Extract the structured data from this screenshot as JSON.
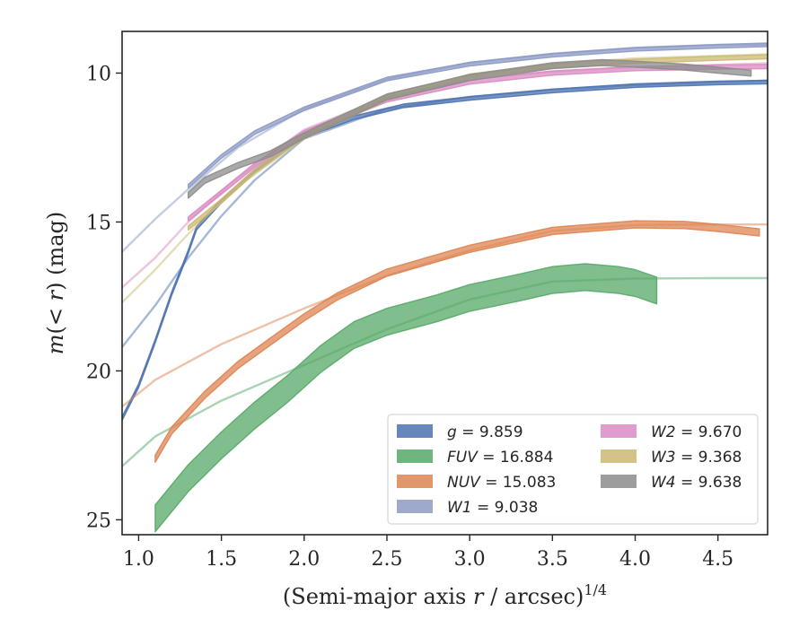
{
  "chart_data": {
    "type": "line",
    "xlabel": "(Semi-major axis r / arcsec)^{1/4}",
    "xlabel_parts": {
      "main": "(Semi-major axis ",
      "var": "r",
      "rest": " / arcsec)",
      "sup": "1/4"
    },
    "ylabel": "m(< r) (mag)",
    "ylabel_parts": {
      "m": "m",
      "open": "(< ",
      "var": "r",
      "close": ") (mag)"
    },
    "xlim": [
      0.9,
      4.8
    ],
    "ylim": [
      25.5,
      8.6
    ],
    "y_inverted": true,
    "xticks": [
      1.0,
      1.5,
      2.0,
      2.5,
      3.0,
      3.5,
      4.0,
      4.5
    ],
    "xtick_labels": [
      "1.0",
      "1.5",
      "2.0",
      "2.5",
      "3.0",
      "3.5",
      "4.0",
      "4.5"
    ],
    "yticks": [
      10,
      15,
      20,
      25
    ],
    "ytick_labels": [
      "10",
      "15",
      "20",
      "25"
    ],
    "grid": false,
    "legend_position": "lower-right",
    "series": [
      {
        "name": "g",
        "legend_var": "g",
        "legend_value": "= 9.859",
        "color": "#4c72b0",
        "band": 0.06,
        "data": [
          [
            0.9,
            21.6
          ],
          [
            1.0,
            20.5
          ],
          [
            1.1,
            19.0
          ],
          [
            1.2,
            17.4
          ],
          [
            1.3,
            16.0
          ],
          [
            1.35,
            15.2
          ],
          [
            1.5,
            14.3
          ],
          [
            1.7,
            13.3
          ],
          [
            2.0,
            12.1
          ],
          [
            2.3,
            11.5
          ],
          [
            2.6,
            11.1
          ],
          [
            3.0,
            10.85
          ],
          [
            3.5,
            10.6
          ],
          [
            4.0,
            10.42
          ],
          [
            4.5,
            10.33
          ],
          [
            4.8,
            10.3
          ]
        ],
        "model": [
          [
            0.9,
            19.2
          ],
          [
            1.1,
            17.8
          ],
          [
            1.3,
            16.2
          ],
          [
            1.5,
            14.8
          ],
          [
            1.7,
            13.6
          ],
          [
            2.0,
            12.2
          ],
          [
            2.5,
            11.2
          ],
          [
            3.0,
            10.8
          ],
          [
            3.5,
            10.55
          ],
          [
            4.0,
            10.4
          ],
          [
            4.5,
            10.3
          ],
          [
            4.8,
            10.25
          ]
        ]
      },
      {
        "name": "FUV",
        "legend_var": "FUV",
        "legend_value": "= 16.884",
        "color": "#55a868",
        "band": 0.45,
        "data": [
          [
            1.1,
            24.95
          ],
          [
            1.3,
            23.6
          ],
          [
            1.5,
            22.5
          ],
          [
            1.7,
            21.5
          ],
          [
            1.9,
            20.6
          ],
          [
            2.1,
            19.6
          ],
          [
            2.3,
            18.8
          ],
          [
            2.5,
            18.35
          ],
          [
            2.8,
            17.9
          ],
          [
            3.0,
            17.55
          ],
          [
            3.3,
            17.2
          ],
          [
            3.5,
            16.95
          ],
          [
            3.7,
            16.85
          ],
          [
            3.9,
            16.95
          ],
          [
            4.0,
            17.05
          ],
          [
            4.13,
            17.3
          ]
        ],
        "model": [
          [
            0.9,
            23.2
          ],
          [
            1.1,
            22.2
          ],
          [
            1.5,
            21.0
          ],
          [
            2.0,
            19.8
          ],
          [
            2.5,
            18.6
          ],
          [
            3.0,
            17.6
          ],
          [
            3.5,
            17.0
          ],
          [
            4.0,
            16.9
          ],
          [
            4.5,
            16.884
          ],
          [
            4.8,
            16.884
          ]
        ]
      },
      {
        "name": "NUV",
        "legend_var": "NUV",
        "legend_value": "= 15.083",
        "color": "#dd8452",
        "band": 0.12,
        "data": [
          [
            1.1,
            22.95
          ],
          [
            1.2,
            22.0
          ],
          [
            1.4,
            20.8
          ],
          [
            1.6,
            19.8
          ],
          [
            1.8,
            19.0
          ],
          [
            2.0,
            18.2
          ],
          [
            2.2,
            17.5
          ],
          [
            2.5,
            16.7
          ],
          [
            3.0,
            15.9
          ],
          [
            3.5,
            15.3
          ],
          [
            4.0,
            15.08
          ],
          [
            4.3,
            15.1
          ],
          [
            4.5,
            15.2
          ],
          [
            4.75,
            15.35
          ]
        ],
        "model": [
          [
            0.9,
            21.2
          ],
          [
            1.1,
            20.3
          ],
          [
            1.5,
            19.1
          ],
          [
            2.0,
            17.9
          ],
          [
            2.5,
            16.8
          ],
          [
            3.0,
            15.95
          ],
          [
            3.5,
            15.3
          ],
          [
            4.0,
            15.1
          ],
          [
            4.5,
            15.083
          ],
          [
            4.8,
            15.083
          ]
        ]
      },
      {
        "name": "W1",
        "legend_var": "W1",
        "legend_value": "= 9.038",
        "color": "#8c9ac4",
        "band": 0.06,
        "data": [
          [
            1.3,
            13.8
          ],
          [
            1.5,
            12.8
          ],
          [
            1.7,
            12.0
          ],
          [
            2.0,
            11.2
          ],
          [
            2.5,
            10.2
          ],
          [
            3.0,
            9.7
          ],
          [
            3.5,
            9.4
          ],
          [
            4.0,
            9.2
          ],
          [
            4.5,
            9.1
          ],
          [
            4.8,
            9.05
          ]
        ],
        "model": [
          [
            0.9,
            16.0
          ],
          [
            1.1,
            14.9
          ],
          [
            1.3,
            13.9
          ],
          [
            1.6,
            12.5
          ],
          [
            2.0,
            11.2
          ],
          [
            2.5,
            10.2
          ],
          [
            3.0,
            9.65
          ],
          [
            3.5,
            9.35
          ],
          [
            4.0,
            9.15
          ],
          [
            4.5,
            9.05
          ],
          [
            4.8,
            9.038
          ]
        ]
      },
      {
        "name": "W2",
        "legend_var": "W2",
        "legend_value": "= 9.670",
        "color": "#da8bc3",
        "band": 0.07,
        "data": [
          [
            1.3,
            14.9
          ],
          [
            1.5,
            14.0
          ],
          [
            1.7,
            13.1
          ],
          [
            2.0,
            12.0
          ],
          [
            2.5,
            10.9
          ],
          [
            3.0,
            10.3
          ],
          [
            3.5,
            10.0
          ],
          [
            4.0,
            9.85
          ],
          [
            4.5,
            9.8
          ],
          [
            4.8,
            9.78
          ]
        ],
        "model": [
          [
            0.9,
            17.2
          ],
          [
            1.1,
            16.2
          ],
          [
            1.3,
            15.0
          ],
          [
            1.6,
            13.5
          ],
          [
            2.0,
            11.9
          ],
          [
            2.5,
            10.8
          ],
          [
            3.0,
            10.2
          ],
          [
            3.5,
            9.95
          ],
          [
            4.0,
            9.8
          ],
          [
            4.5,
            9.72
          ],
          [
            4.8,
            9.67
          ]
        ]
      },
      {
        "name": "W3",
        "legend_var": "W3",
        "legend_value": "= 9.368",
        "color": "#ccb974",
        "band": 0.07,
        "data": [
          [
            1.3,
            15.2
          ],
          [
            1.5,
            14.3
          ],
          [
            1.7,
            13.3
          ],
          [
            2.0,
            12.1
          ],
          [
            2.5,
            10.8
          ],
          [
            3.0,
            10.1
          ],
          [
            3.5,
            9.75
          ],
          [
            4.0,
            9.6
          ],
          [
            4.5,
            9.5
          ],
          [
            4.8,
            9.45
          ]
        ],
        "model": [
          [
            0.9,
            17.7
          ],
          [
            1.1,
            16.6
          ],
          [
            1.3,
            15.4
          ],
          [
            1.6,
            13.8
          ],
          [
            2.0,
            12.2
          ],
          [
            2.5,
            10.9
          ],
          [
            3.0,
            10.1
          ],
          [
            3.5,
            9.7
          ],
          [
            4.0,
            9.5
          ],
          [
            4.5,
            9.42
          ],
          [
            4.8,
            9.368
          ]
        ]
      },
      {
        "name": "W4",
        "legend_var": "W4",
        "legend_value": "= 9.638",
        "color": "#8c8c8c",
        "band": 0.1,
        "data": [
          [
            1.3,
            14.1
          ],
          [
            1.4,
            13.6
          ],
          [
            1.6,
            13.1
          ],
          [
            1.8,
            12.7
          ],
          [
            2.0,
            12.1
          ],
          [
            2.5,
            10.8
          ],
          [
            3.0,
            10.15
          ],
          [
            3.5,
            9.75
          ],
          [
            3.8,
            9.65
          ],
          [
            4.0,
            9.7
          ],
          [
            4.3,
            9.8
          ],
          [
            4.5,
            9.9
          ],
          [
            4.7,
            10.0
          ]
        ],
        "model": []
      }
    ]
  }
}
